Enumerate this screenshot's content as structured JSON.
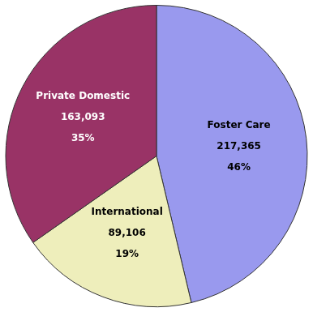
{
  "chart_data": {
    "type": "pie",
    "categories": [
      "Foster Care",
      "International",
      "Private Domestic"
    ],
    "values": [
      217365,
      89106,
      163093
    ],
    "value_labels": [
      "217,365",
      "89,106",
      "163,093"
    ],
    "percentages": [
      {
        "value": 46,
        "label": "46%"
      },
      {
        "value": 19,
        "label": "19%"
      },
      {
        "value": 35,
        "label": "35%"
      }
    ],
    "colors": [
      "#9999ee",
      "#eeeebb",
      "#993366"
    ],
    "data_labels": true,
    "legend": false
  }
}
